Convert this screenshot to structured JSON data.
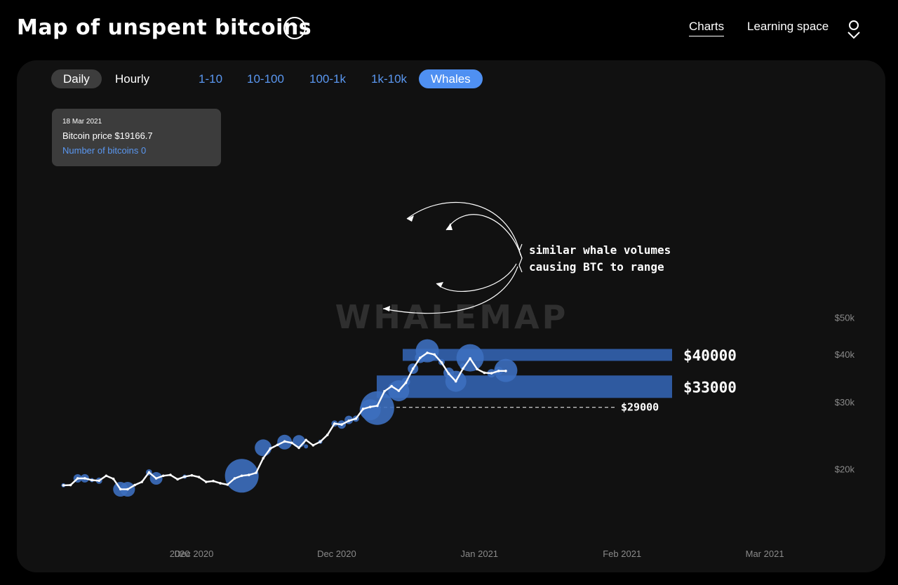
{
  "header": {
    "title": "Map of unspent bitcoins",
    "help_label": "?",
    "nav": {
      "charts": "Charts",
      "learning": "Learning space"
    }
  },
  "toolbar": {
    "daily": "Daily",
    "hourly": "Hourly",
    "ranges": [
      "1-10",
      "10-100",
      "100-1k",
      "1k-10k",
      "Whales"
    ],
    "active_range": "Whales"
  },
  "tooltip": {
    "date": "18 Mar 2021",
    "price": "Bitcoin price $19166.7",
    "count": "Number of bitcoins 0"
  },
  "watermark": "WHALEMAP",
  "annotations": {
    "level_high": "$40000",
    "level_low": "$33000",
    "level_dashed": "$29000",
    "note_line1": "similar whale volumes",
    "note_line2": "causing BTC to range"
  },
  "colors": {
    "background": "#000000",
    "panel": "#111111",
    "accent": "#4f90f2",
    "bubble": "#3d6fbf",
    "band": "#2f5aa0",
    "line": "#ffffff"
  },
  "chart_data": {
    "type": "line",
    "ylog": true,
    "ylim": [
      16500,
      52000
    ],
    "y_ticks": [
      {
        "value": 20000,
        "label": "$20k"
      },
      {
        "value": 30000,
        "label": "$30k"
      },
      {
        "value": 40000,
        "label": "$40k"
      },
      {
        "value": 50000,
        "label": "$50k"
      }
    ],
    "x_ticks": [
      {
        "day": -2,
        "label": "2020"
      },
      {
        "day": 0,
        "label": "Dec 2020"
      },
      {
        "day": 20,
        "label": "Dec 2020"
      },
      {
        "day": 40,
        "label": "Jan 2021"
      },
      {
        "day": 60,
        "label": "Feb 2021"
      },
      {
        "day": 80,
        "label": "Mar 2021"
      }
    ],
    "xlim": [
      -18,
      87
    ],
    "series": [
      {
        "values": [
          [
            -18.3,
            18170
          ],
          [
            -17.3,
            18200
          ],
          [
            -16.3,
            18950
          ],
          [
            -15.3,
            18960
          ],
          [
            -14.3,
            18750
          ],
          [
            -13.3,
            18690
          ],
          [
            -12.3,
            19250
          ],
          [
            -11.3,
            18900
          ],
          [
            -10.3,
            17750
          ],
          [
            -9.3,
            17740
          ],
          [
            -8.3,
            18200
          ],
          [
            -7.3,
            18550
          ],
          [
            -6.3,
            19650
          ],
          [
            -5.3,
            18950
          ],
          [
            -4.3,
            19250
          ],
          [
            -3.3,
            19350
          ],
          [
            -2.3,
            18850
          ],
          [
            -1.3,
            19150
          ],
          [
            -0.3,
            19300
          ],
          [
            0.7,
            19100
          ],
          [
            1.7,
            18550
          ],
          [
            2.7,
            18650
          ],
          [
            3.7,
            18400
          ],
          [
            4.7,
            18250
          ],
          [
            5.7,
            18950
          ],
          [
            6.7,
            19250
          ],
          [
            7.7,
            19350
          ],
          [
            8.7,
            19600
          ],
          [
            9.7,
            21400
          ],
          [
            10.7,
            22700
          ],
          [
            11.7,
            23200
          ],
          [
            12.7,
            23700
          ],
          [
            13.7,
            23500
          ],
          [
            14.7,
            22800
          ],
          [
            15.7,
            23900
          ],
          [
            16.7,
            23150
          ],
          [
            17.7,
            23650
          ],
          [
            18.7,
            24650
          ],
          [
            19.7,
            26400
          ],
          [
            20.7,
            26250
          ],
          [
            21.7,
            26850
          ],
          [
            22.7,
            27200
          ],
          [
            23.7,
            28850
          ],
          [
            24.7,
            29200
          ],
          [
            25.7,
            29400
          ],
          [
            26.7,
            32100
          ],
          [
            27.7,
            33100
          ],
          [
            28.7,
            32200
          ],
          [
            29.7,
            33800
          ],
          [
            30.7,
            36800
          ],
          [
            31.7,
            39300
          ],
          [
            32.7,
            40500
          ],
          [
            33.7,
            40100
          ],
          [
            34.7,
            38200
          ],
          [
            35.7,
            35700
          ],
          [
            36.7,
            34100
          ],
          [
            37.7,
            36800
          ],
          [
            38.7,
            39150
          ],
          [
            39.7,
            36700
          ],
          [
            40.7,
            35900
          ],
          [
            41.7,
            35800
          ],
          [
            42.7,
            36300
          ],
          [
            43.7,
            36300
          ]
        ]
      }
    ],
    "bubbles": [
      {
        "day": -18.3,
        "price": 18170,
        "size": 2
      },
      {
        "day": -16.3,
        "price": 18950,
        "size": 4
      },
      {
        "day": -15.3,
        "price": 18960,
        "size": 4
      },
      {
        "day": -14.3,
        "price": 18750,
        "size": 2
      },
      {
        "day": -13.3,
        "price": 18690,
        "size": 3
      },
      {
        "day": -10.3,
        "price": 17740,
        "size": 7
      },
      {
        "day": -9.3,
        "price": 17740,
        "size": 7
      },
      {
        "day": -6.3,
        "price": 19650,
        "size": 3
      },
      {
        "day": -5.3,
        "price": 18950,
        "size": 6
      },
      {
        "day": -1.3,
        "price": 19150,
        "size": 2
      },
      {
        "day": 6.7,
        "price": 19250,
        "size": 16
      },
      {
        "day": 9.7,
        "price": 22800,
        "size": 8
      },
      {
        "day": 12.7,
        "price": 23600,
        "size": 7
      },
      {
        "day": 14.7,
        "price": 23700,
        "size": 6
      },
      {
        "day": 15.7,
        "price": 23000,
        "size": 2
      },
      {
        "day": 17.7,
        "price": 23650,
        "size": 2
      },
      {
        "day": 19.7,
        "price": 26400,
        "size": 3
      },
      {
        "day": 20.7,
        "price": 26250,
        "size": 4
      },
      {
        "day": 21.7,
        "price": 27000,
        "size": 4
      },
      {
        "day": 22.7,
        "price": 27200,
        "size": 3
      },
      {
        "day": 24.7,
        "price": 28700,
        "size": 10
      },
      {
        "day": 25.7,
        "price": 29000,
        "size": 16
      },
      {
        "day": 27.7,
        "price": 33000,
        "size": 3
      },
      {
        "day": 28.7,
        "price": 32200,
        "size": 10
      },
      {
        "day": 29.7,
        "price": 34000,
        "size": 4
      },
      {
        "day": 30.7,
        "price": 36800,
        "size": 5
      },
      {
        "day": 31.7,
        "price": 39300,
        "size": 5
      },
      {
        "day": 32.7,
        "price": 41000,
        "size": 11
      },
      {
        "day": 34.7,
        "price": 38300,
        "size": 3
      },
      {
        "day": 35.7,
        "price": 35900,
        "size": 5
      },
      {
        "day": 36.7,
        "price": 34100,
        "size": 10
      },
      {
        "day": 37.7,
        "price": 37300,
        "size": 3
      },
      {
        "day": 38.7,
        "price": 39300,
        "size": 13
      },
      {
        "day": 41.7,
        "price": 35800,
        "size": 4
      },
      {
        "day": 42.7,
        "price": 36300,
        "size": 4
      },
      {
        "day": 43.7,
        "price": 36400,
        "size": 11
      }
    ],
    "levels": [
      {
        "price": 40000,
        "label": "$40000",
        "style": "band"
      },
      {
        "price": 33000,
        "label": "$33000",
        "style": "band"
      },
      {
        "price": 29000,
        "label": "$29000",
        "style": "dashed"
      }
    ]
  }
}
